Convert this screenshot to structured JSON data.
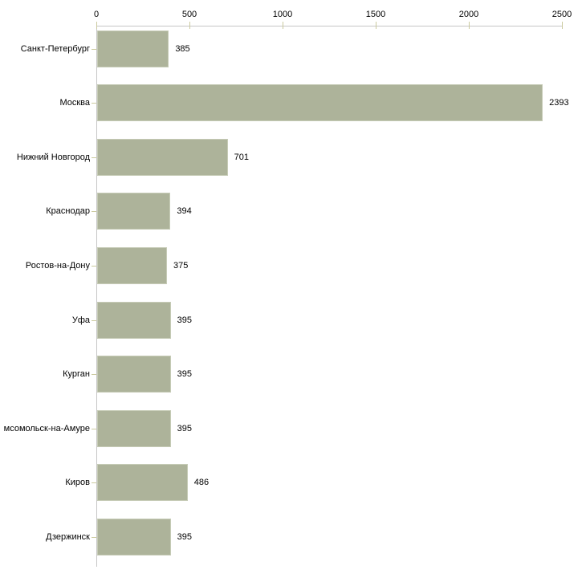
{
  "chart_data": {
    "type": "bar",
    "orientation": "horizontal",
    "categories": [
      "Санкт-Петербург",
      "Москва",
      "Нижний Новгород",
      "Краснодар",
      "Ростов-на-Дону",
      "Уфа",
      "Курган",
      "мсомольск-на-Амуре",
      "Киров",
      "Дзержинск"
    ],
    "values": [
      385,
      2393,
      701,
      394,
      375,
      395,
      395,
      395,
      486,
      395
    ],
    "x_ticks": [
      "0",
      "500",
      "1000",
      "1500",
      "2000",
      "2500"
    ],
    "x_tick_values": [
      0,
      500,
      1000,
      1500,
      2000,
      2500
    ],
    "xlim": [
      0,
      2500
    ],
    "xlabel": "",
    "ylabel": "",
    "title": "",
    "grid": false,
    "legend": "none",
    "axis_position": "top",
    "colors": {
      "bar_fill": "#adb39a",
      "bar_border": "#c6cbb6",
      "axis_line": "#c6c6c6",
      "tick": "#cbca9e",
      "text": "#000000",
      "background": "#ffffff"
    }
  }
}
